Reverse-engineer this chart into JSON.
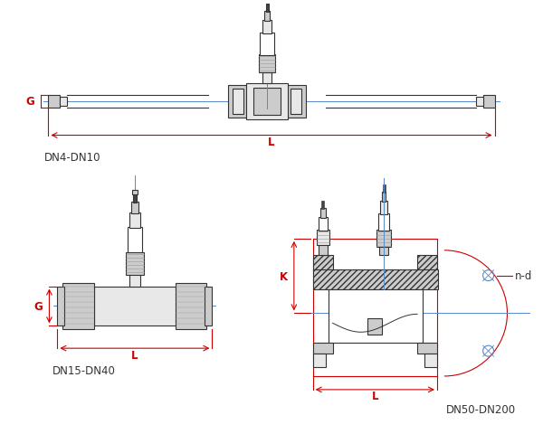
{
  "bg_color": "#ffffff",
  "line_color": "#333333",
  "red_color": "#cc0000",
  "blue_color": "#5588cc",
  "gray_light": "#e8e8e8",
  "gray_mid": "#cccccc",
  "gray_dark": "#999999",
  "hatch_gray": "#aaaaaa",
  "label_font_size": 8.5,
  "fig_width": 6.0,
  "fig_height": 4.81,
  "dpi": 100,
  "labels": {
    "dn4_dn10": "DN4-DN10",
    "dn15_dn40": "DN15-DN40",
    "dn50_dn200": "DN50-DN200",
    "G": "G",
    "L": "L",
    "K": "K",
    "nd": "n-d"
  }
}
